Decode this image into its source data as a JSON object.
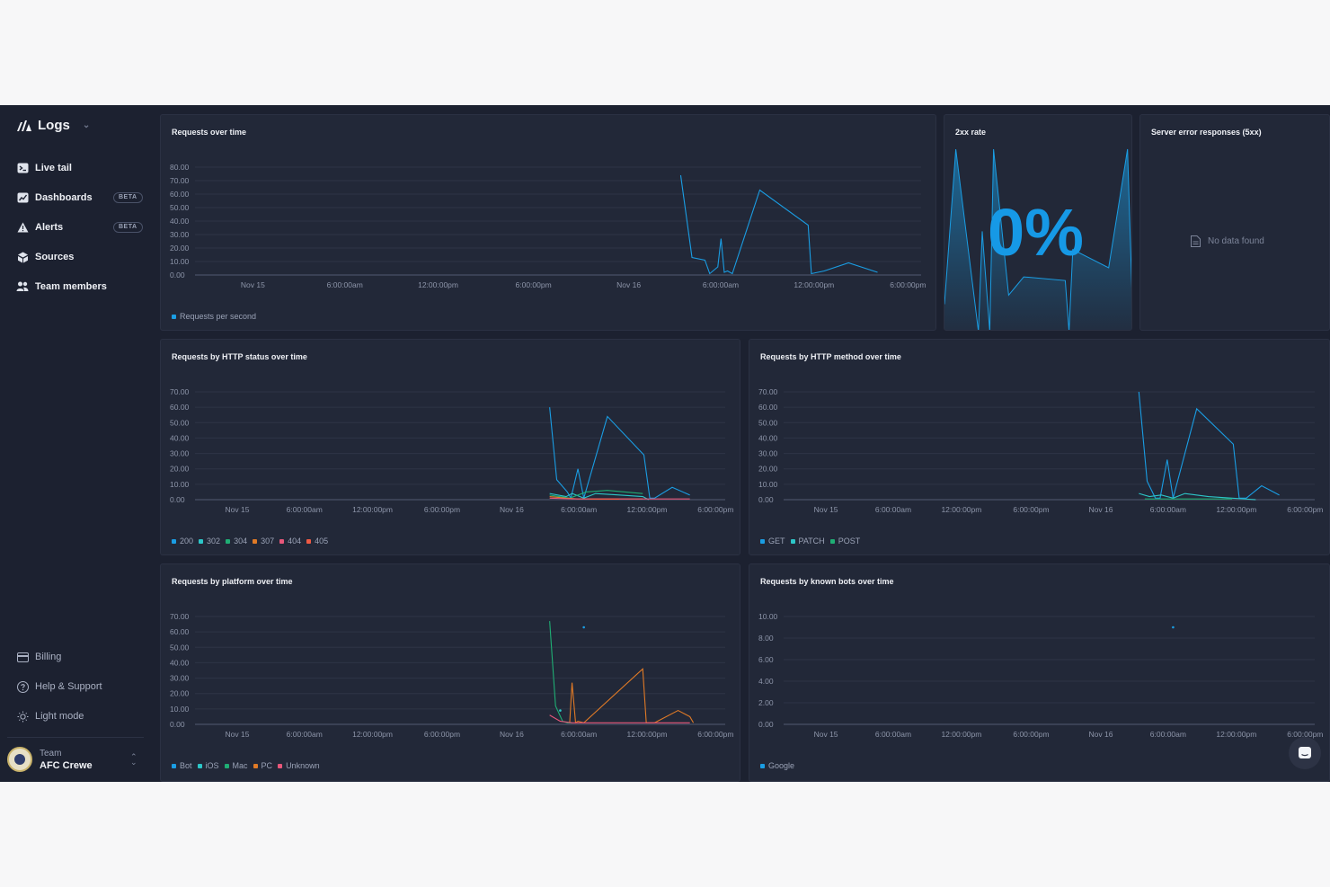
{
  "brand": "Logs",
  "nav": [
    {
      "label": "Live tail",
      "icon": "terminal-icon",
      "badge": ""
    },
    {
      "label": "Dashboards",
      "icon": "dashboard-icon",
      "badge": "BETA"
    },
    {
      "label": "Alerts",
      "icon": "alert-icon",
      "badge": "BETA"
    },
    {
      "label": "Sources",
      "icon": "sources-icon",
      "badge": ""
    },
    {
      "label": "Team members",
      "icon": "team-icon",
      "badge": ""
    }
  ],
  "bottom_nav": [
    {
      "label": "Billing",
      "icon": "billing-icon"
    },
    {
      "label": "Help & Support",
      "icon": "help-icon"
    },
    {
      "label": "Light mode",
      "icon": "sun-icon"
    }
  ],
  "team": {
    "label": "Team",
    "name": "AFC Crewe"
  },
  "panels": {
    "requests_over_time": "Requests over time",
    "rate": {
      "title": "2xx rate",
      "value": "0%"
    },
    "server_errors": {
      "title": "Server error responses (5xx)",
      "empty": "No data found"
    },
    "by_status": "Requests by HTTP status over time",
    "by_method": "Requests by HTTP method over time",
    "by_platform": "Requests by platform over time",
    "by_bots": "Requests by known bots over time"
  },
  "colors": {
    "blue": "#1a9de3",
    "teal": "#2cc6c8",
    "green": "#1fae74",
    "orange": "#e07a26",
    "pink": "#e8577a",
    "red": "#ef5a44"
  },
  "chart_data": [
    {
      "id": "requests_over_time",
      "type": "line",
      "title": "Requests over time",
      "x_ticks": [
        "Nov 15",
        "6:00:00am",
        "12:00:00pm",
        "6:00:00pm",
        "Nov 16",
        "6:00:00am",
        "12:00:00pm",
        "6:00:00pm"
      ],
      "x_range": [
        0,
        45
      ],
      "ylim": [
        0,
        80
      ],
      "y_ticks": [
        "80.00",
        "70.00",
        "60.00",
        "50.00",
        "40.00",
        "30.00",
        "20.00",
        "10.00",
        "0.00"
      ],
      "series": [
        {
          "name": "Requests per second",
          "color": "#1a9de3",
          "x": [
            30.1,
            30.8,
            31.6,
            31.9,
            32.4,
            32.6,
            32.8,
            33.0,
            33.3,
            35.0,
            38.0,
            38.2,
            39.0,
            40.5,
            42.3
          ],
          "y": [
            74,
            13,
            11,
            1,
            6,
            27,
            2,
            3,
            1,
            63,
            37,
            1,
            3,
            9,
            2
          ]
        }
      ]
    },
    {
      "id": "rate",
      "type": "area",
      "title": "2xx rate",
      "series": [
        {
          "name": "2xx rate",
          "color": "#1a9de3",
          "x": [
            0,
            0.06,
            0.18,
            0.2,
            0.24,
            0.26,
            0.3,
            0.34,
            0.38,
            0.42,
            0.64,
            0.66,
            0.68,
            0.87,
            0.97,
            1.0
          ],
          "y": [
            0.15,
            1.0,
            0,
            0.55,
            0,
            1.0,
            0.6,
            0.2,
            0.25,
            0.3,
            0.28,
            0,
            0.45,
            0.35,
            1.0,
            0
          ]
        }
      ]
    },
    {
      "id": "by_status",
      "type": "line",
      "title": "Requests by HTTP status over time",
      "x_ticks": [
        "Nov 15",
        "6:00:00am",
        "12:00:00pm",
        "6:00:00pm",
        "Nov 16",
        "6:00:00am",
        "12:00:00pm",
        "6:00:00pm"
      ],
      "x_range": [
        0,
        45
      ],
      "ylim": [
        0,
        70
      ],
      "y_ticks": [
        "70.00",
        "60.00",
        "50.00",
        "40.00",
        "30.00",
        "20.00",
        "10.00",
        "0.00"
      ],
      "series": [
        {
          "name": "200",
          "color": "#1a9de3",
          "x": [
            30.1,
            30.7,
            31.6,
            31.9,
            32.5,
            33.0,
            35.0,
            38.1,
            38.6,
            39.0,
            40.5,
            42.0
          ],
          "y": [
            60,
            13,
            5,
            1,
            20,
            1,
            54,
            29,
            1,
            1,
            8,
            3
          ]
        },
        {
          "name": "302",
          "color": "#2cc6c8",
          "x": [
            30.1,
            31.5,
            32.0,
            33.0,
            34.0,
            36.0,
            38.0,
            38.5
          ],
          "y": [
            4,
            2,
            4,
            1,
            4,
            3,
            2,
            0
          ]
        },
        {
          "name": "304",
          "color": "#1fae74",
          "x": [
            30.1,
            31.8,
            33.2,
            35.0,
            38.0
          ],
          "y": [
            3,
            1,
            5,
            6,
            4
          ]
        },
        {
          "name": "307",
          "color": "#e07a26",
          "x": [
            30.1,
            31.5,
            32.5,
            38.0
          ],
          "y": [
            2,
            1,
            0.5,
            0.5
          ]
        },
        {
          "name": "404",
          "color": "#e8577a",
          "x": [
            30.1,
            32.0,
            35.0,
            42.0
          ],
          "y": [
            1,
            0.5,
            0.5,
            0.5
          ]
        },
        {
          "name": "405",
          "color": "#ef5a44",
          "x": [
            33.5,
            36.0
          ],
          "y": [
            0.3,
            0.3
          ]
        }
      ]
    },
    {
      "id": "by_method",
      "type": "line",
      "title": "Requests by HTTP method over time",
      "x_ticks": [
        "Nov 15",
        "6:00:00am",
        "12:00:00pm",
        "6:00:00pm",
        "Nov 16",
        "6:00:00am",
        "12:00:00pm",
        "6:00:00pm"
      ],
      "x_range": [
        0,
        45
      ],
      "ylim": [
        0,
        70
      ],
      "y_ticks": [
        "70.00",
        "60.00",
        "50.00",
        "40.00",
        "30.00",
        "20.00",
        "10.00",
        "0.00"
      ],
      "series": [
        {
          "name": "GET",
          "color": "#1a9de3",
          "x": [
            30.1,
            30.8,
            31.5,
            31.9,
            32.5,
            33.0,
            35.0,
            38.1,
            38.6,
            39.2,
            40.5,
            42.0
          ],
          "y": [
            70,
            12,
            1,
            1,
            26,
            1,
            59,
            36,
            1,
            1,
            9,
            3
          ]
        },
        {
          "name": "PATCH",
          "color": "#2cc6c8",
          "x": [
            30.1,
            31.0,
            32.0,
            33.0,
            34.0,
            36.0,
            38.0,
            40.0
          ],
          "y": [
            4,
            2,
            3,
            1,
            4,
            2,
            1,
            0
          ]
        },
        {
          "name": "POST",
          "color": "#1fae74",
          "x": [
            30.6,
            32.0,
            38.0
          ],
          "y": [
            0.5,
            0.5,
            0.5
          ]
        }
      ]
    },
    {
      "id": "by_platform",
      "type": "line",
      "title": "Requests by platform over time",
      "x_ticks": [
        "Nov 15",
        "6:00:00am",
        "12:00:00pm",
        "6:00:00pm",
        "Nov 16",
        "6:00:00am",
        "12:00:00pm",
        "6:00:00pm"
      ],
      "x_range": [
        0,
        45
      ],
      "ylim": [
        0,
        70
      ],
      "y_ticks": [
        "70.00",
        "60.00",
        "50.00",
        "40.00",
        "30.00",
        "20.00",
        "10.00",
        "0.00"
      ],
      "series": [
        {
          "name": "Bot",
          "color": "#1a9de3",
          "x": [
            33.0
          ],
          "y": [
            63
          ]
        },
        {
          "name": "iOS",
          "color": "#2cc6c8",
          "x": [
            31.0
          ],
          "y": [
            9
          ]
        },
        {
          "name": "Mac",
          "color": "#1fae74",
          "x": [
            30.1,
            30.6,
            31.2,
            31.6,
            32.0
          ],
          "y": [
            67,
            12,
            2,
            1,
            1
          ]
        },
        {
          "name": "PC",
          "color": "#e07a26",
          "x": [
            31.8,
            32.0,
            32.3,
            32.5,
            33.0,
            38.0,
            38.3,
            39.0,
            41.0,
            42.0,
            42.3
          ],
          "y": [
            1,
            27,
            1,
            2,
            1,
            36,
            1,
            1,
            9,
            5,
            1
          ]
        },
        {
          "name": "Unknown",
          "color": "#e8577a",
          "x": [
            30.1,
            31.0,
            32.0,
            34.0,
            39.0,
            42.0
          ],
          "y": [
            6,
            2,
            1,
            1,
            1,
            1
          ]
        }
      ]
    },
    {
      "id": "by_bots",
      "type": "scatter",
      "title": "Requests by known bots over time",
      "x_ticks": [
        "Nov 15",
        "6:00:00am",
        "12:00:00pm",
        "6:00:00pm",
        "Nov 16",
        "6:00:00am",
        "12:00:00pm",
        "6:00:00pm"
      ],
      "x_range": [
        0,
        45
      ],
      "ylim": [
        0,
        10
      ],
      "y_ticks": [
        "10.00",
        "8.00",
        "6.00",
        "4.00",
        "2.00",
        "0.00"
      ],
      "series": [
        {
          "name": "Google",
          "color": "#1a9de3",
          "x": [
            33.0
          ],
          "y": [
            9
          ]
        }
      ]
    }
  ]
}
